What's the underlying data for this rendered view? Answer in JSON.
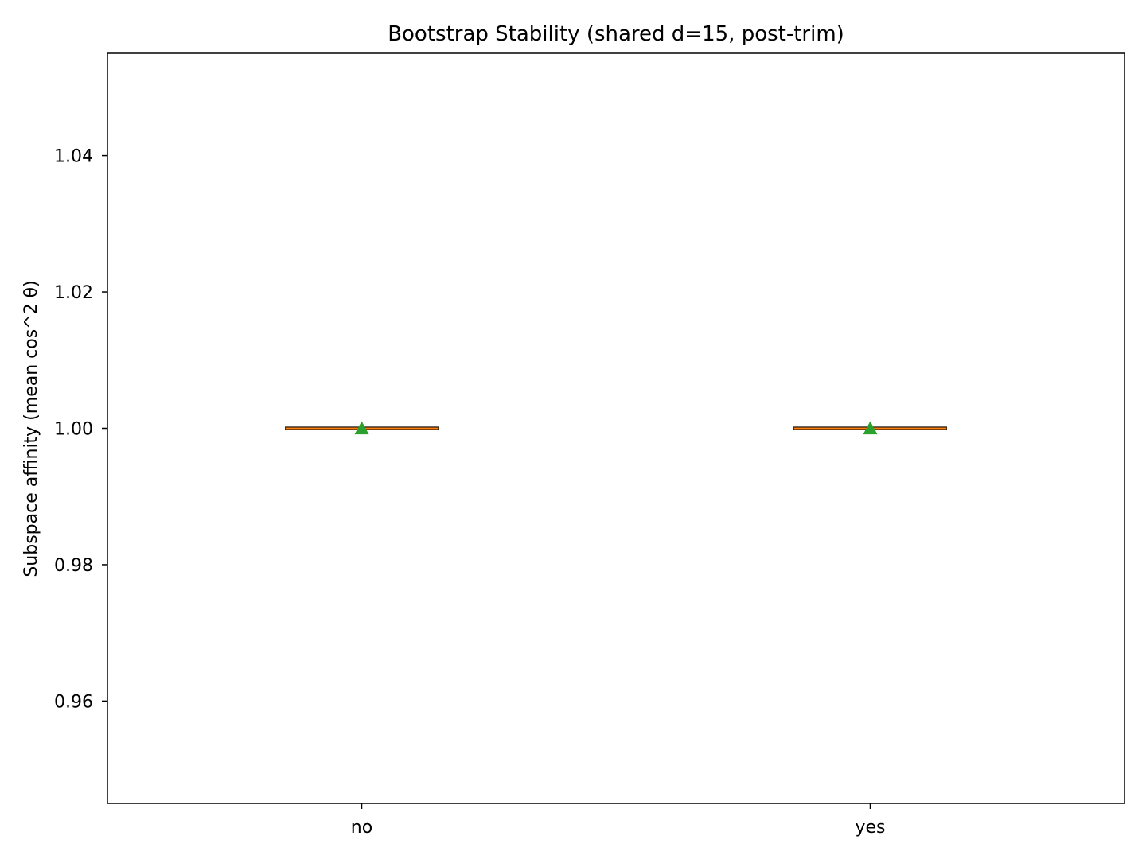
{
  "chart_data": {
    "type": "box",
    "title": "Bootstrap Stability (shared d=15, post-trim)",
    "xlabel": "",
    "ylabel": "Subspace affinity (mean cos^2 θ)",
    "categories": [
      "no",
      "yes"
    ],
    "boxes": [
      {
        "category": "no",
        "min": 1.0,
        "q1": 1.0,
        "median": 1.0,
        "q3": 1.0,
        "max": 1.0,
        "mean": 1.0
      },
      {
        "category": "yes",
        "min": 1.0,
        "q1": 1.0,
        "median": 1.0,
        "q3": 1.0,
        "max": 1.0,
        "mean": 1.0
      }
    ],
    "ylim": [
      0.945,
      1.055
    ],
    "yticks": [
      0.96,
      0.98,
      1.0,
      1.02,
      1.04
    ],
    "ytick_labels": [
      "0.96",
      "0.98",
      "1.00",
      "1.02",
      "1.04"
    ],
    "grid": false,
    "legend": "none",
    "colors": {
      "median": "#ff7f0e",
      "mean_marker": "#2ca02c",
      "box_edge": "#000000",
      "axes": "#000000"
    }
  }
}
